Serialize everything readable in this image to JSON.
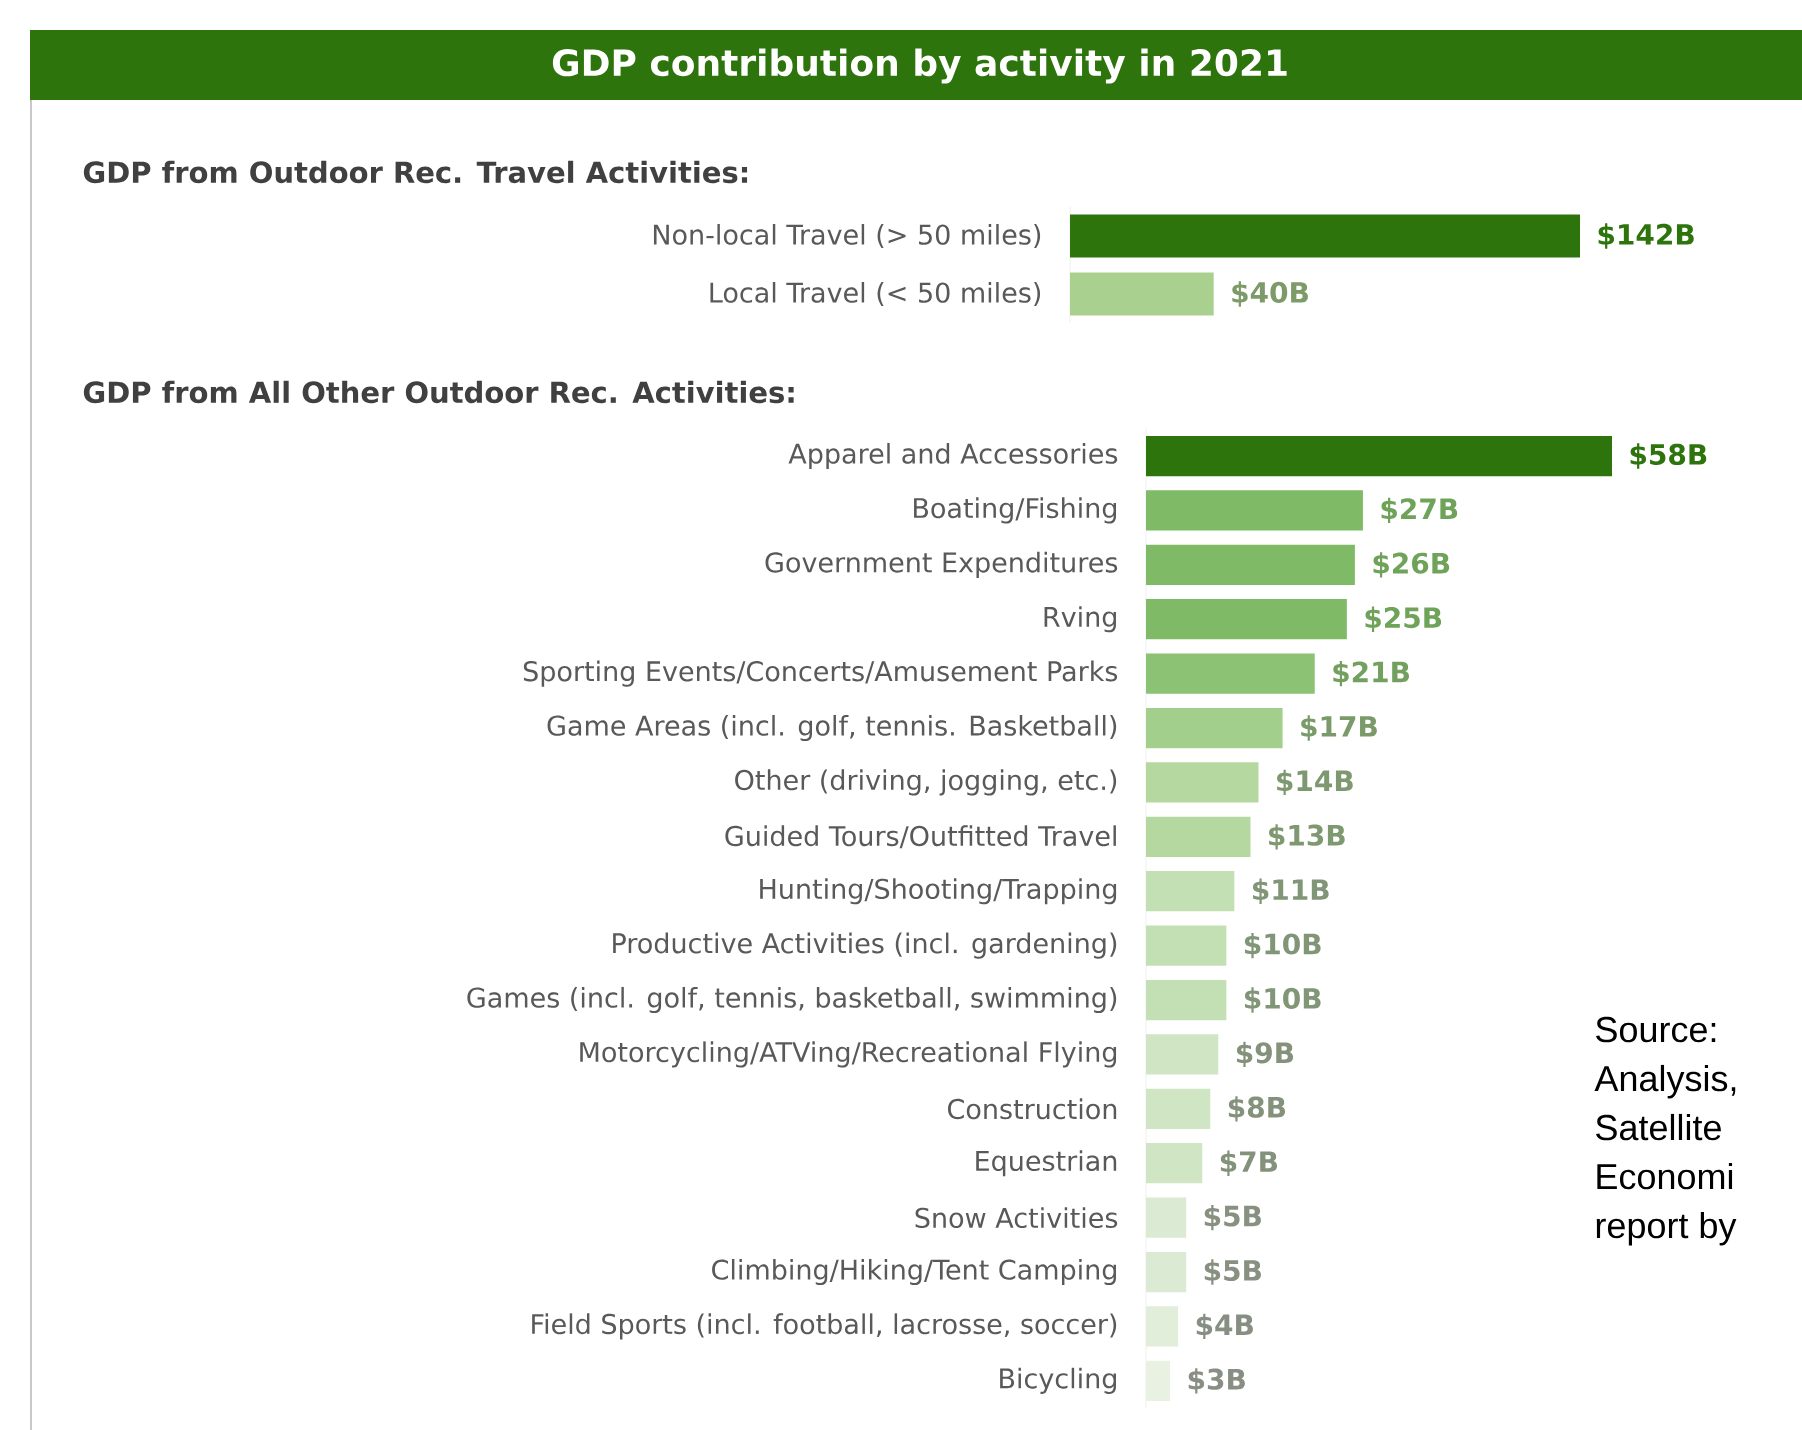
{
  "chart_data": [
    {
      "type": "bar",
      "orientation": "horizontal",
      "title": "GDP contribution by activity in 2021",
      "subtitle": "GDP from Outdoor Rec. Travel Activities:",
      "categories": [
        "Non-local Travel (> 50 miles)",
        "Local Travel (< 50 miles)"
      ],
      "values": [
        142,
        40
      ],
      "colors": [
        "#2d740c",
        "#a9d08e"
      ],
      "value_labels": [
        "$142B",
        "$40B"
      ]
    },
    {
      "type": "bar",
      "orientation": "horizontal",
      "title": "GDP from All Other Outdoor Rec. Activities:",
      "categories": [
        "Apparel and Accessories",
        "Boating/Fishing",
        "Government Expenditures",
        "Rving",
        "Sporting Events/Concerts/Amusement Parks",
        "Game Areas (incl. golf, tennis. Basketball)",
        "Other (driving, jogging, etc.)",
        "Guided Tours/Outfitted Travel",
        "Hunting/Shooting/Trapping",
        "Productive Activities (incl. gardening)",
        "Games (incl. golf, tennis, basketball, swimming)",
        "Motorcycling/ATVing/Recreational Flying",
        "Construction",
        "Equestrian",
        "Snow Activities",
        "Climbing/Hiking/Tent Camping",
        "Field Sports (incl. football, lacrosse, soccer)",
        "Bicycling"
      ],
      "values": [
        58,
        27,
        26,
        25,
        21,
        17,
        14,
        13,
        11,
        10,
        10,
        9,
        8,
        7,
        5,
        5,
        4,
        3
      ],
      "colors": [
        "#2d740c",
        "#7fba67",
        "#7fba67",
        "#7fba67",
        "#8cc273",
        "#a3cf8c",
        "#b4d8a0",
        "#b4d8a0",
        "#c3e0b4",
        "#c3e0b4",
        "#c3e0b4",
        "#cfe5c3",
        "#cfe5c3",
        "#cfe5c3",
        "#dbead2",
        "#dbead2",
        "#e1eed9",
        "#e8f1e2"
      ],
      "value_labels": [
        "$58B",
        "$27B",
        "$26B",
        "$25B",
        "$21B",
        "$17B",
        "$14B",
        "$13B",
        "$11B",
        "$10B",
        "$10B",
        "$9B",
        "$8B",
        "$7B",
        "$5B",
        "$5B",
        "$4B",
        "$3B"
      ],
      "annotations": [
        "Source:",
        "Analysis,",
        "Satellite",
        "Economi",
        "report by"
      ]
    }
  ]
}
